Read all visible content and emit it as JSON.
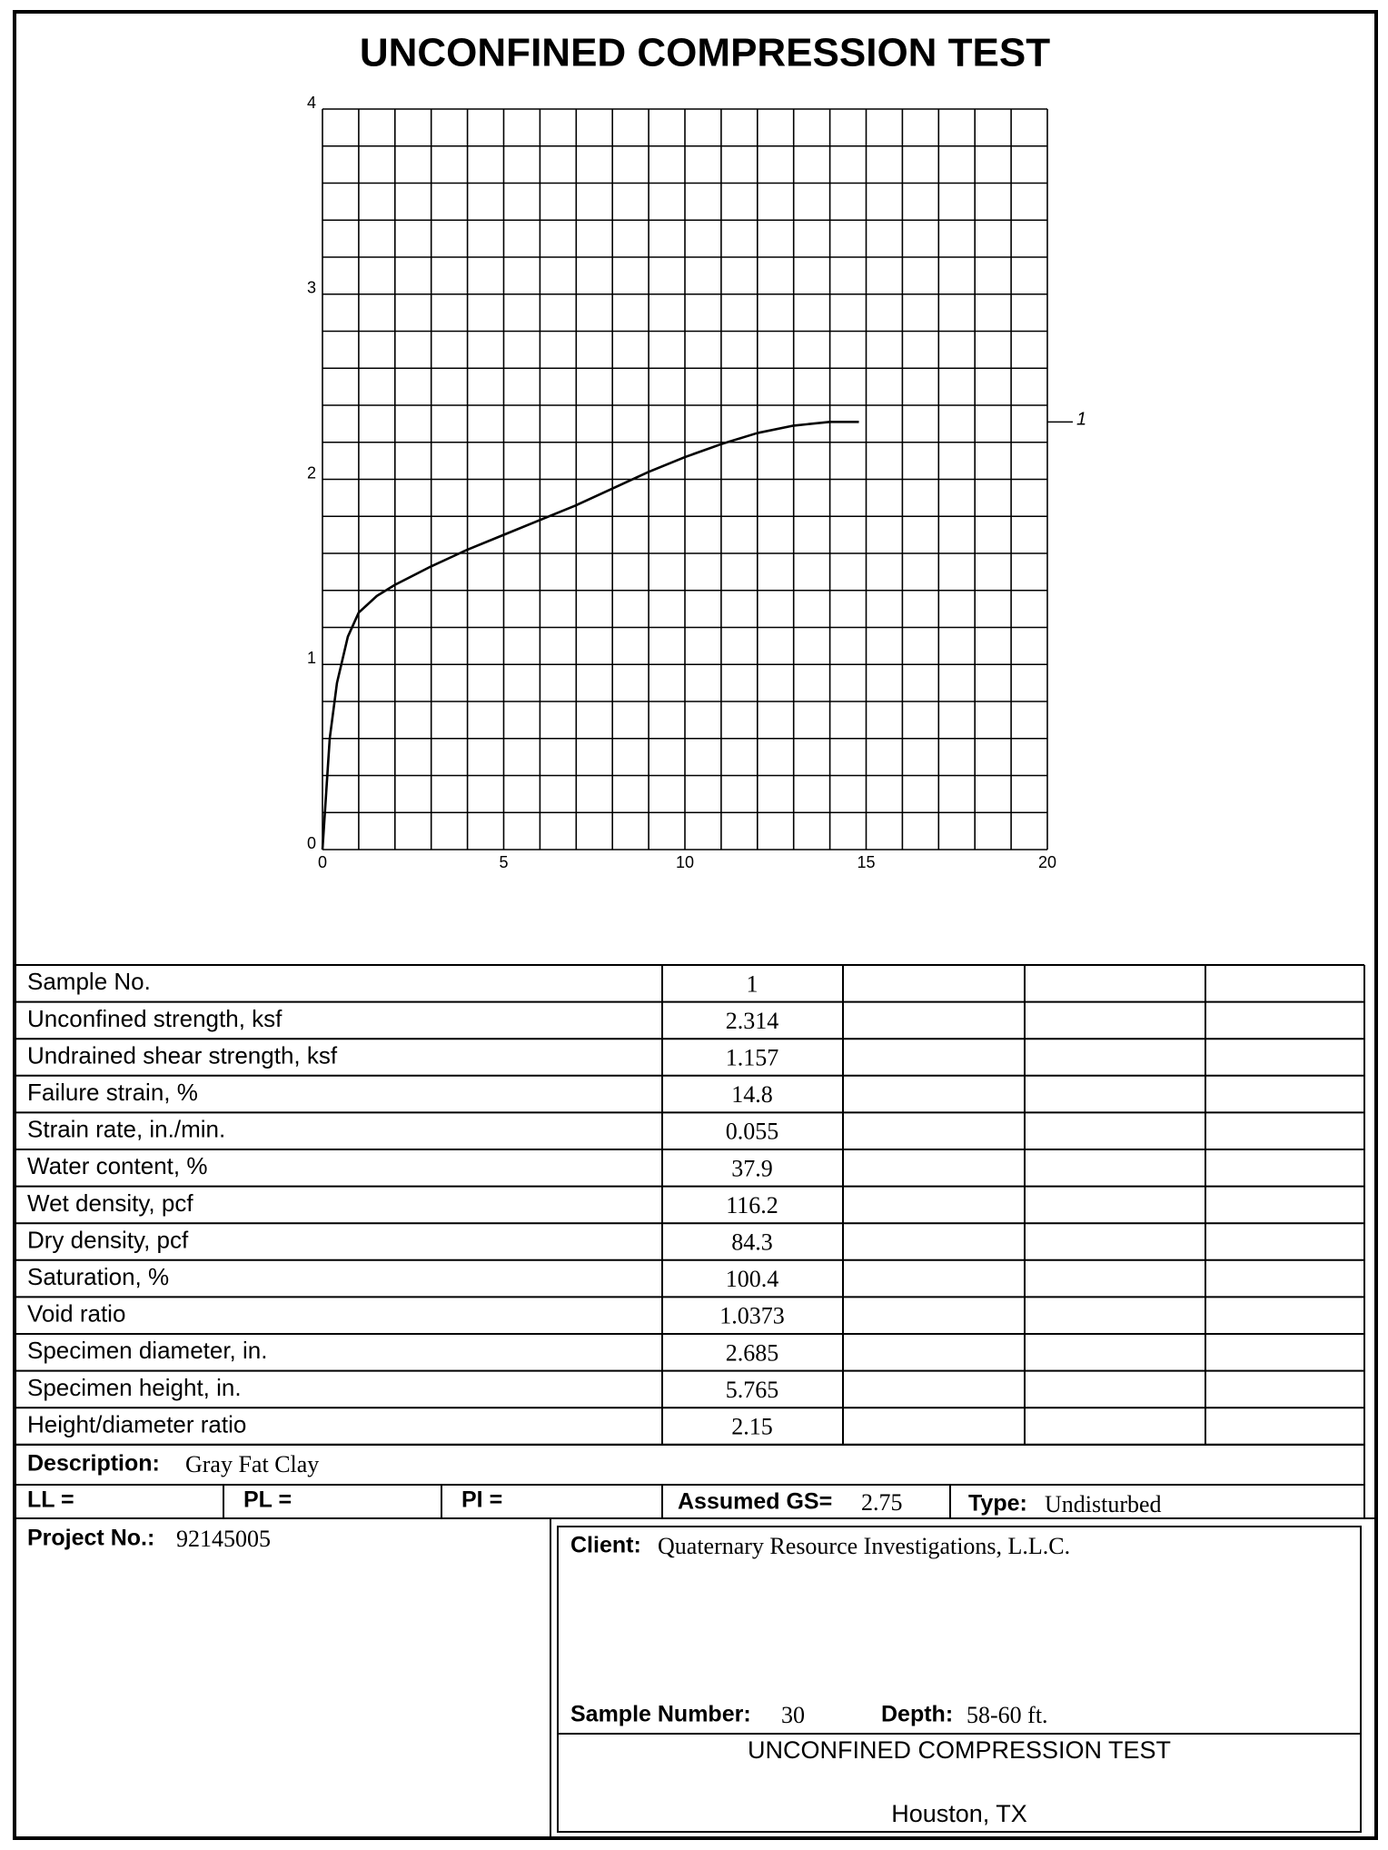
{
  "chart_data": {
    "type": "line",
    "title": "UNCONFINED COMPRESSION TEST",
    "x": [
      0,
      0.1,
      0.2,
      0.4,
      0.7,
      1,
      1.5,
      2,
      3,
      4,
      5,
      6,
      7,
      8,
      9,
      10,
      11,
      12,
      13,
      14,
      14.8
    ],
    "series": [
      {
        "name": "1",
        "color": "#000000",
        "values": [
          0,
          0.3,
          0.6,
          0.9,
          1.15,
          1.28,
          1.37,
          1.43,
          1.53,
          1.62,
          1.7,
          1.78,
          1.86,
          1.95,
          2.04,
          2.12,
          2.19,
          2.25,
          2.29,
          2.31,
          2.31
        ]
      }
    ],
    "xlim": [
      0,
      20
    ],
    "ylim": [
      0,
      4
    ],
    "xticks": [
      0,
      5,
      10,
      15,
      20
    ],
    "yticks": [
      0,
      1,
      2,
      3,
      4
    ],
    "grid": true,
    "xgrid": [
      0,
      1,
      2,
      3,
      4,
      5,
      6,
      7,
      8,
      9,
      10,
      11,
      12,
      13,
      14,
      15,
      16,
      17,
      18,
      19,
      20
    ],
    "ygrid": [
      0,
      0.2,
      0.4,
      0.6,
      0.8,
      1,
      1.2,
      1.4,
      1.6,
      1.8,
      2,
      2.2,
      2.4,
      2.6,
      2.8,
      3,
      3.2,
      3.4,
      3.6,
      3.8,
      4
    ]
  },
  "table": {
    "rows": [
      {
        "label": "Sample No.",
        "value": "1"
      },
      {
        "label": "Unconfined strength, ksf",
        "value": "2.314"
      },
      {
        "label": "Undrained shear strength, ksf",
        "value": "1.157"
      },
      {
        "label": "Failure strain, %",
        "value": "14.8"
      },
      {
        "label": "Strain rate, in./min.",
        "value": "0.055"
      },
      {
        "label": "Water content, %",
        "value": "37.9"
      },
      {
        "label": "Wet density, pcf",
        "value": "116.2"
      },
      {
        "label": "Dry density, pcf",
        "value": "84.3"
      },
      {
        "label": "Saturation, %",
        "value": "100.4"
      },
      {
        "label": "Void ratio",
        "value": "1.0373"
      },
      {
        "label": "Specimen diameter, in.",
        "value": "2.685"
      },
      {
        "label": "Specimen height, in.",
        "value": "5.765"
      },
      {
        "label": "Height/diameter ratio",
        "value": "2.15"
      }
    ]
  },
  "description": {
    "label": "Description:",
    "value": "Gray Fat Clay"
  },
  "limits": {
    "ll": {
      "label": "LL ="
    },
    "pl": {
      "label": "PL ="
    },
    "pi": {
      "label": "PI ="
    },
    "gs": {
      "label": "Assumed GS=",
      "value": "2.75"
    },
    "type": {
      "label": "Type:",
      "value": "Undisturbed"
    }
  },
  "project": {
    "label": "Project No.:",
    "value": "92145005"
  },
  "client": {
    "label": "Client:",
    "value": "Quaternary Resource Investigations, L.L.C."
  },
  "sample_number": {
    "label": "Sample Number:",
    "value": "30"
  },
  "depth": {
    "label": "Depth:",
    "value": "58-60 ft."
  },
  "footer": {
    "title": "UNCONFINED COMPRESSION TEST",
    "location": "Houston, TX"
  }
}
